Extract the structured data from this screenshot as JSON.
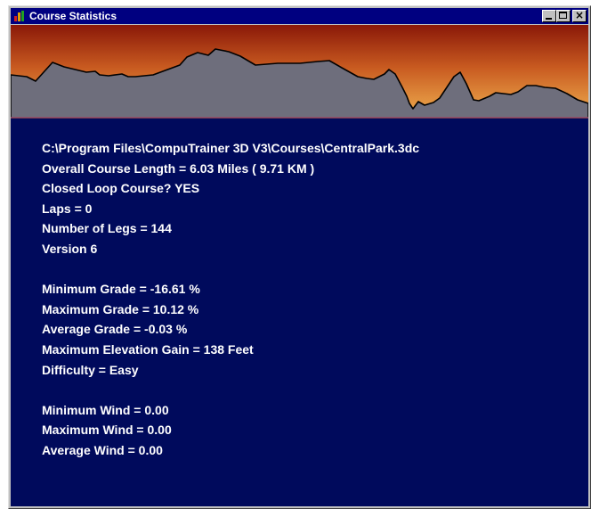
{
  "window": {
    "title": "Course Statistics",
    "buttons": {
      "minimize": "minimize-icon",
      "maximize": "maximize-icon",
      "close": "close-icon"
    }
  },
  "profile": {
    "sky_top_color": "#8a1808",
    "sky_bottom_color": "#f0b050",
    "terrain_color": "#6e6e7c",
    "outline_color": "#000000"
  },
  "stats": {
    "file_path": "C:\\Program Files\\CompuTrainer 3D V3\\Courses\\CentralPark.3dc",
    "course_length": "Overall Course Length = 6.03 Miles ( 9.71 KM )",
    "closed_loop": "Closed Loop Course? YES",
    "laps": "Laps = 0",
    "legs": "Number of Legs = 144",
    "version": "Version 6",
    "min_grade": "Minimum Grade = -16.61 %",
    "max_grade": "Maximum Grade = 10.12 %",
    "avg_grade": "Average Grade = -0.03 %",
    "max_elevation_gain": "Maximum Elevation Gain = 138 Feet",
    "difficulty": "Difficulty = Easy",
    "min_wind": "Minimum Wind = 0.00",
    "max_wind": "Maximum Wind = 0.00",
    "avg_wind": "Average Wind = 0.00"
  }
}
